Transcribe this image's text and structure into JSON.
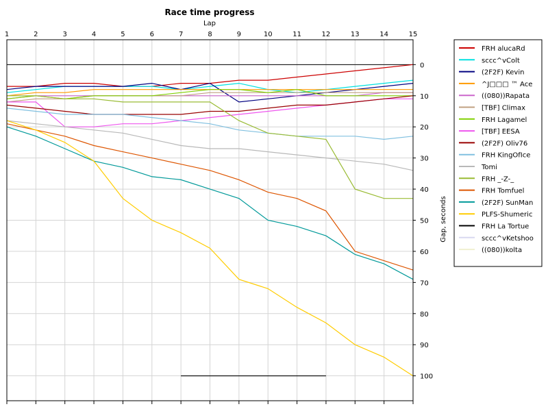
{
  "chart_data": {
    "type": "line",
    "title": "Race time progress",
    "xlabel": "Lap",
    "ylabel": "Gap, seconds",
    "x": [
      1,
      2,
      3,
      4,
      5,
      6,
      7,
      8,
      9,
      10,
      11,
      12,
      13,
      14,
      15
    ],
    "xlim": [
      1,
      15
    ],
    "ylim": [
      -8,
      108
    ],
    "y_ticks": [
      0,
      10,
      20,
      30,
      40,
      50,
      60,
      70,
      80,
      90,
      100
    ],
    "y_axis_inverted": true,
    "grid": true,
    "legend_placement": "right",
    "series": [
      {
        "name": "FRH alucaRd",
        "color": "#cc0000",
        "values": [
          7,
          7,
          6,
          6,
          7,
          7,
          6,
          6,
          5,
          5,
          4,
          3,
          2,
          1,
          0
        ]
      },
      {
        "name": "sccc^vColt",
        "color": "#00e0e0",
        "values": [
          9,
          8,
          7,
          7,
          7,
          7,
          8,
          7,
          6,
          8,
          9,
          8,
          7,
          6,
          5
        ]
      },
      {
        "name": "(2F2F) Kevin",
        "color": "#000080",
        "values": [
          8,
          7,
          7,
          7,
          7,
          6,
          8,
          6,
          12,
          11,
          10,
          9,
          8,
          7,
          6
        ]
      },
      {
        "name": "^J□□□ ™ Ace",
        "color": "#ff9900",
        "values": [
          10,
          9,
          9,
          8,
          8,
          8,
          8,
          8,
          8,
          8,
          8,
          8,
          8,
          8,
          8
        ]
      },
      {
        "name": "((080))Rapata",
        "color": "#cc66cc",
        "values": [
          11,
          10,
          10,
          10,
          10,
          10,
          10,
          10,
          10,
          10,
          10,
          10,
          10,
          9,
          9
        ]
      },
      {
        "name": "[TBF] Climax",
        "color": "#c0a080",
        "values": [
          12,
          11,
          11,
          10,
          10,
          10,
          10,
          9,
          9,
          9,
          9,
          9,
          9,
          9,
          9
        ]
      },
      {
        "name": "FRH Lagamel",
        "color": "#80d000",
        "values": [
          11,
          10,
          11,
          10,
          10,
          10,
          9,
          8,
          8,
          9,
          8,
          10,
          10,
          10,
          10
        ]
      },
      {
        "name": "[TBF] EESA",
        "color": "#ee55ee",
        "values": [
          12,
          12,
          20,
          20,
          19,
          19,
          18,
          17,
          16,
          15,
          14,
          13,
          12,
          11,
          11
        ]
      },
      {
        "name": "(2F2F) Oliv76",
        "color": "#990000",
        "values": [
          13,
          14,
          15,
          16,
          16,
          16,
          16,
          15,
          15,
          14,
          13,
          13,
          12,
          11,
          10
        ]
      },
      {
        "name": "FRH KingOfIce",
        "color": "#80c0e0",
        "values": [
          14,
          15,
          16,
          16,
          16,
          17,
          18,
          19,
          21,
          22,
          23,
          23,
          23,
          24,
          23
        ]
      },
      {
        "name": "Tomi",
        "color": "#b8b8b8",
        "values": [
          18,
          19,
          20,
          21,
          22,
          24,
          26,
          27,
          27,
          28,
          29,
          30,
          31,
          32,
          34
        ]
      },
      {
        "name": "FRH _-Z-_",
        "color": "#99bb33",
        "values": [
          10,
          10,
          11,
          11,
          12,
          12,
          12,
          12,
          18,
          22,
          23,
          24,
          40,
          43,
          43
        ]
      },
      {
        "name": "FRH Tomfuel",
        "color": "#dd5500",
        "values": [
          19,
          21,
          23,
          26,
          28,
          30,
          32,
          34,
          37,
          41,
          43,
          47,
          60,
          63,
          66
        ]
      },
      {
        "name": "(2F2F) SunMan",
        "color": "#009999",
        "values": [
          20,
          23,
          27,
          31,
          33,
          36,
          37,
          40,
          43,
          50,
          52,
          55,
          61,
          64,
          69
        ]
      },
      {
        "name": "PLFS-Shumeric",
        "color": "#ffcc00",
        "values": [
          18,
          21,
          25,
          31,
          43,
          50,
          54,
          59,
          69,
          72,
          78,
          83,
          90,
          94,
          100
        ]
      },
      {
        "name": "FRH La Tortue",
        "color": "#000000",
        "values": [
          null,
          null,
          null,
          null,
          null,
          null,
          100,
          100,
          100,
          100,
          100,
          100,
          null,
          null,
          null
        ]
      },
      {
        "name": "sccc^vKetshoo",
        "color": "#d8d8f0",
        "values": [
          null,
          null,
          null,
          null,
          null,
          null,
          null,
          null,
          null,
          null,
          null,
          null,
          null,
          null,
          null
        ]
      },
      {
        "name": "((080))kolta",
        "color": "#f0f0d0",
        "values": [
          null,
          null,
          null,
          null,
          null,
          null,
          null,
          null,
          null,
          null,
          null,
          null,
          null,
          null,
          null
        ]
      }
    ]
  }
}
